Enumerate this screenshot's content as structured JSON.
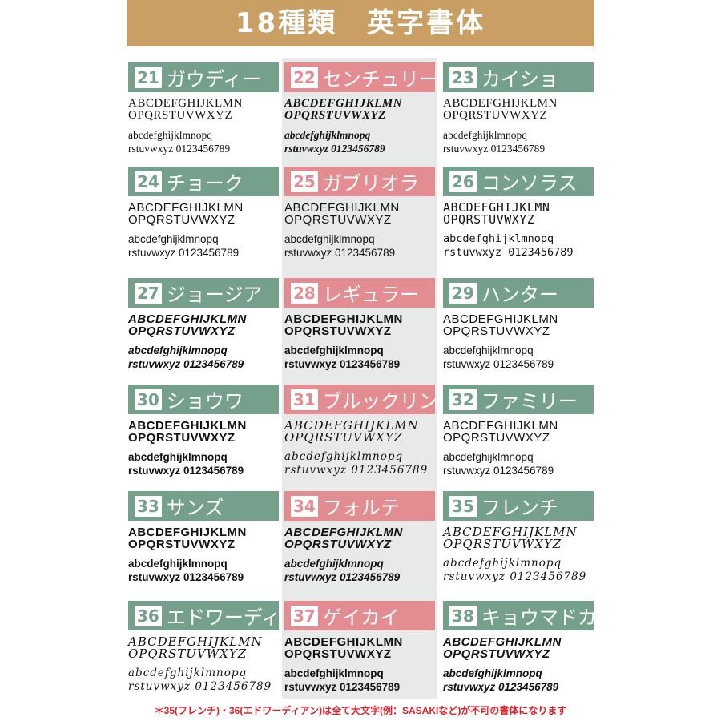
{
  "header": {
    "title": "18種類　英字書体"
  },
  "colors": {
    "header": "#c99f63",
    "green": "#74a08c",
    "pink": "#e38d92",
    "grey": "#e8e9e9",
    "note": "#e0202a"
  },
  "fonts": [
    {
      "num": "21",
      "name": "ガウディー",
      "color": "green",
      "style": "serif"
    },
    {
      "num": "22",
      "name": "センチュリー",
      "color": "pink",
      "style": "sserif"
    },
    {
      "num": "23",
      "name": "カイショ",
      "color": "green",
      "style": "serif"
    },
    {
      "num": "24",
      "name": "チョーク",
      "color": "green",
      "style": "sans"
    },
    {
      "num": "25",
      "name": "ガブリオラ",
      "color": "pink",
      "style": "sans"
    },
    {
      "num": "26",
      "name": "コンソラス",
      "color": "green",
      "style": "mono"
    },
    {
      "num": "27",
      "name": "ジョージア",
      "color": "green",
      "style": "bi"
    },
    {
      "num": "28",
      "name": "レギュラー",
      "color": "pink",
      "style": "bold"
    },
    {
      "num": "29",
      "name": "ハンター",
      "color": "green",
      "style": "sans"
    },
    {
      "num": "30",
      "name": "ショウワ",
      "color": "green",
      "style": "bold"
    },
    {
      "num": "31",
      "name": "ブルックリン",
      "color": "pink",
      "style": "script"
    },
    {
      "num": "32",
      "name": "ファミリー",
      "color": "green",
      "style": "sans"
    },
    {
      "num": "33",
      "name": "サンズ",
      "color": "green",
      "style": "bold"
    },
    {
      "num": "34",
      "name": "フォルテ",
      "color": "pink",
      "style": "bi"
    },
    {
      "num": "35",
      "name": "フレンチ",
      "color": "green",
      "style": "script"
    },
    {
      "num": "36",
      "name": "エドワーディアン",
      "color": "green",
      "style": "script"
    },
    {
      "num": "37",
      "name": "ゲイカイ",
      "color": "pink",
      "style": "bold"
    },
    {
      "num": "38",
      "name": "キョウマドカ",
      "color": "green",
      "style": "bi"
    }
  ],
  "sample": {
    "upper1": "ABCDEFGHIJKLMN",
    "upper2": "OPQRSTUVWXYZ",
    "lower1": "abcdefghijklmnopq",
    "lower2": "rstuvwxyz 0123456789"
  },
  "footer": {
    "note": "＊35(フレンチ)・36(エドワーディアン)は全て大文字(例：SASAKIなど)が不可の書体になります"
  }
}
